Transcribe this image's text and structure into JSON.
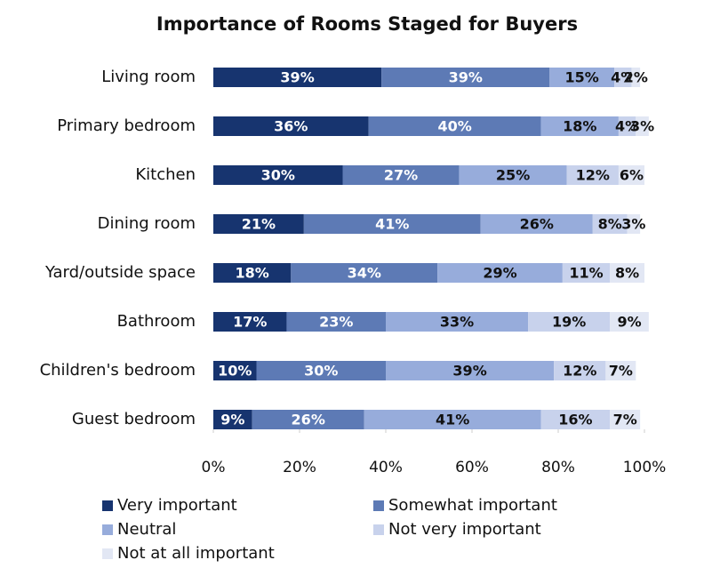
{
  "chart_data": {
    "type": "stacked-bar-horizontal",
    "title": "Importance of Rooms Staged for Buyers",
    "categories": [
      "Living room",
      "Primary bedroom",
      "Kitchen",
      "Dining room",
      "Yard/outside space",
      "Bathroom",
      "Children's bedroom",
      "Guest bedroom"
    ],
    "series": [
      {
        "name": "Very important",
        "color": "#17346f",
        "values": [
          39,
          36,
          30,
          21,
          18,
          17,
          10,
          9
        ],
        "value_labels": [
          "39%",
          "36%",
          "30%",
          "21%",
          "18%",
          "17%",
          "10%",
          "9%"
        ]
      },
      {
        "name": "Somewhat important",
        "color": "#5d7ab5",
        "values": [
          39,
          40,
          27,
          41,
          34,
          23,
          30,
          26
        ],
        "value_labels": [
          "39%",
          "40%",
          "27%",
          "41%",
          "34%",
          "23%",
          "30%",
          "26%"
        ]
      },
      {
        "name": "Neutral",
        "color": "#97acdb",
        "values": [
          15,
          18,
          25,
          26,
          29,
          33,
          39,
          41
        ],
        "value_labels": [
          "15%",
          "18%",
          "25%",
          "26%",
          "29%",
          "33%",
          "39%",
          "41%"
        ]
      },
      {
        "name": "Not very important",
        "color": "#c8d2ec",
        "values": [
          4,
          4,
          12,
          8,
          11,
          19,
          12,
          16
        ],
        "value_labels": [
          "4%",
          "4%",
          "12%",
          "8%",
          "11%",
          "19%",
          "12%",
          "16%"
        ]
      },
      {
        "name": "Not at all important",
        "color": "#e2e7f4",
        "values": [
          2,
          3,
          6,
          3,
          8,
          9,
          7,
          7
        ],
        "value_labels": [
          "2%",
          "3%",
          "6%",
          "3%",
          "8%",
          "9%",
          "7%",
          "7%"
        ]
      }
    ],
    "xlim": [
      0,
      100
    ],
    "xticks": [
      {
        "value": 0,
        "label": "0%"
      },
      {
        "value": 20,
        "label": "20%"
      },
      {
        "value": 40,
        "label": "40%"
      },
      {
        "value": 60,
        "label": "60%"
      },
      {
        "value": 80,
        "label": "80%"
      },
      {
        "value": 100,
        "label": "100%"
      }
    ]
  }
}
